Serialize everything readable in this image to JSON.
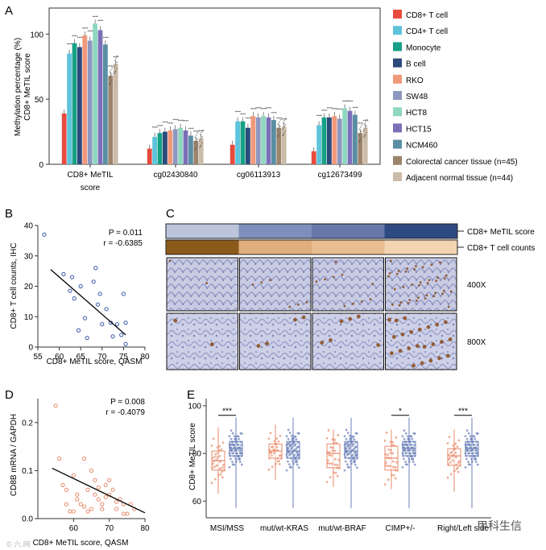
{
  "panels": {
    "a": "A",
    "b": "B",
    "c": "C",
    "d": "D",
    "e": "E"
  },
  "colors": {
    "cd8": "#e84a3d",
    "cd4": "#5ec4dc",
    "mono": "#16a085",
    "bcell": "#2c4a7c",
    "rko": "#f0987a",
    "sw48": "#8e97c0",
    "hct8": "#8ed8c0",
    "hct15": "#7b6fb8",
    "ncm460": "#5a8fa3",
    "crc": "#9c846c",
    "adj": "#cbbba8",
    "pointB": "#3a57a8",
    "pointD": "#e88a6a",
    "boxLeft": "#e88a6a",
    "boxRight": "#6a7fb8"
  },
  "chart_data": [
    {
      "type": "bar",
      "panel": "A",
      "ylabel": "Methylation percentage (%) CD8+ MeTIL score",
      "ylim": [
        0,
        120
      ],
      "yticks": [
        0,
        50,
        100
      ],
      "categories": [
        "CD8+ MeTIL score",
        "cg02430840",
        "cg06113913",
        "cg12673499"
      ],
      "significance": "****",
      "series": [
        {
          "name": "CD8+ T cell",
          "color": "cd8",
          "values": [
            39,
            12,
            15,
            10
          ]
        },
        {
          "name": "CD4+ T cell",
          "color": "cd4",
          "values": [
            85,
            21,
            33,
            30
          ]
        },
        {
          "name": "Monocyte",
          "color": "mono",
          "values": [
            93,
            24,
            33,
            36
          ]
        },
        {
          "name": "B cell",
          "color": "bcell",
          "values": [
            90,
            25,
            28,
            36
          ]
        },
        {
          "name": "RKO",
          "color": "rko",
          "values": [
            99,
            26,
            37,
            37
          ]
        },
        {
          "name": "SW48",
          "color": "sw48",
          "values": [
            95,
            27,
            36,
            35
          ]
        },
        {
          "name": "HCT8",
          "color": "hct8",
          "values": [
            108,
            28,
            37,
            43
          ]
        },
        {
          "name": "HCT15",
          "color": "hct15",
          "values": [
            103,
            26,
            36,
            41
          ]
        },
        {
          "name": "NCM460",
          "color": "ncm460",
          "values": [
            92,
            22,
            34,
            38
          ]
        },
        {
          "name": "Colorectal cancer tissue (n=45)",
          "color": "crc",
          "values": [
            68,
            18,
            28,
            24
          ]
        },
        {
          "name": "Adjacent normal tissue (n=44)",
          "color": "adj",
          "values": [
            77,
            20,
            29,
            28
          ]
        }
      ]
    },
    {
      "type": "scatter",
      "panel": "B",
      "xlabel": "CD8+ MeTIL score, QASM",
      "ylabel": "CD8+ T cell counts, IHC",
      "xlim": [
        55,
        80
      ],
      "ylim": [
        0,
        40
      ],
      "xticks": [
        55,
        60,
        65,
        70,
        75,
        80
      ],
      "yticks": [
        0,
        10,
        20,
        30,
        40
      ],
      "stat_p": "P = 0.011",
      "stat_r": "r = -0.6385",
      "x": [
        56.5,
        61,
        62.5,
        63,
        63.5,
        64.5,
        65,
        66,
        66.5,
        68,
        68.5,
        69,
        69.5,
        70,
        71,
        72,
        72.5,
        73.5,
        74.5,
        75,
        75.5,
        75.5
      ],
      "y": [
        37,
        24,
        18.5,
        23,
        16,
        5.5,
        20,
        9.5,
        3,
        21.5,
        26,
        14,
        17.5,
        7.5,
        12.5,
        8,
        3.5,
        7.5,
        4,
        17.5,
        8,
        1
      ],
      "fit": {
        "x": [
          58,
          75.5
        ],
        "y": [
          25.5,
          4
        ]
      }
    },
    {
      "type": "scatter",
      "panel": "D",
      "xlabel": "CD8+ MeTIL score, QASM",
      "ylabel": "CD8B mRNA / GAPDH",
      "xlim": [
        50,
        80
      ],
      "ylim": [
        0,
        0.25
      ],
      "xticks": [
        60,
        70,
        80
      ],
      "yticks": [
        0.0,
        0.1,
        0.2
      ],
      "stat_p": "P = 0.008",
      "stat_r": "r = -0.4079",
      "x": [
        55,
        56,
        57,
        58,
        59,
        60,
        61,
        62,
        63,
        64,
        65,
        66,
        66,
        67,
        68,
        69,
        70,
        71,
        72,
        73,
        74,
        75,
        58,
        61,
        63,
        65,
        67,
        69,
        70,
        72,
        74,
        76,
        77,
        64,
        60,
        68
      ],
      "y": [
        0.235,
        0.125,
        0.07,
        0.03,
        0.015,
        0.09,
        0.05,
        0.03,
        0.125,
        0.06,
        0.02,
        0.05,
        0.08,
        0.04,
        0.03,
        0.07,
        0.05,
        0.06,
        0.02,
        0.04,
        0.03,
        0.01,
        0.06,
        0.04,
        0.025,
        0.1,
        0.065,
        0.045,
        0.08,
        0.035,
        0.01,
        0.03,
        0.02,
        0.015,
        0.015,
        0.02
      ],
      "fit": {
        "x": [
          54,
          80
        ],
        "y": [
          0.105,
          0.012
        ]
      }
    },
    {
      "type": "box",
      "panel": "E",
      "ylabel": "CD8+ MeTIL score",
      "ylim": [
        53,
        103
      ],
      "yticks": [
        60,
        80,
        100
      ],
      "categories": [
        "MSI/MSS",
        "mut/wt-KRAS",
        "mut/wt-BRAF",
        "CIMP+/-",
        "Right/Left side"
      ],
      "significance": [
        "***",
        "",
        "",
        "*",
        "***"
      ],
      "groups": [
        {
          "left": {
            "min": 63,
            "q1": 73,
            "median": 77,
            "q3": 81,
            "max": 91
          },
          "right": {
            "min": 57,
            "q1": 79,
            "median": 82,
            "q3": 85,
            "max": 95
          }
        },
        {
          "left": {
            "min": 69,
            "q1": 78,
            "median": 81,
            "q3": 84,
            "max": 92
          },
          "right": {
            "min": 57,
            "q1": 78,
            "median": 81,
            "q3": 85,
            "max": 95
          }
        },
        {
          "left": {
            "min": 66,
            "q1": 74,
            "median": 80,
            "q3": 84,
            "max": 90
          },
          "right": {
            "min": 57,
            "q1": 78,
            "median": 81,
            "q3": 85,
            "max": 95
          }
        },
        {
          "left": {
            "min": 65,
            "q1": 73,
            "median": 78,
            "q3": 83,
            "max": 90
          },
          "right": {
            "min": 57,
            "q1": 79,
            "median": 82,
            "q3": 85,
            "max": 95
          }
        },
        {
          "left": {
            "min": 64,
            "q1": 75,
            "median": 79,
            "q3": 82,
            "max": 90
          },
          "right": {
            "min": 57,
            "q1": 79,
            "median": 82,
            "q3": 85,
            "max": 95
          }
        }
      ]
    }
  ],
  "panel_c": {
    "score_label": "CD8+ MeTIL score",
    "counts_label": "CD8+ T cell counts",
    "score_colors": [
      "#bcc5dc",
      "#7d8fba",
      "#6678aa",
      "#2e4a82"
    ],
    "count_colors": [
      "#8a5a1a",
      "#dfae7c",
      "#e8bd8f",
      "#f3d4b2"
    ],
    "mag_400": "400X",
    "mag_800": "800X"
  },
  "watermark": {
    "left": "© 六.网",
    "right": "甲科生信"
  }
}
